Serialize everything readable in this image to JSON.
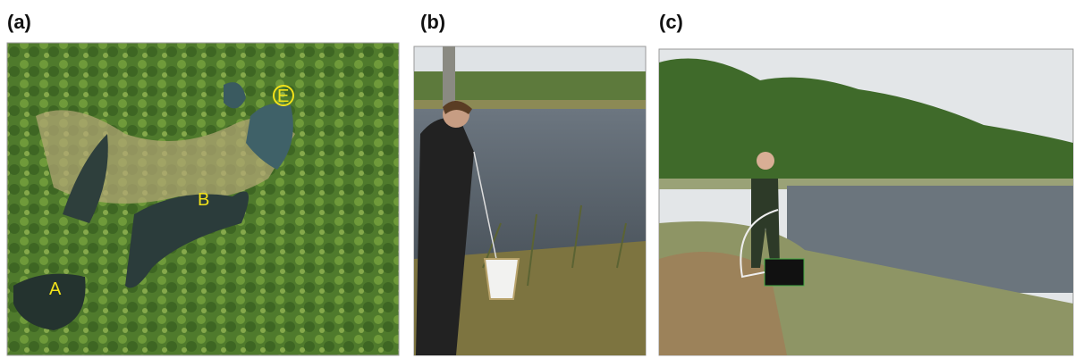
{
  "panels": [
    {
      "label": "(a)",
      "annotations": [
        "A",
        "B",
        "E"
      ]
    },
    {
      "label": "(b)"
    },
    {
      "label": "(c)"
    }
  ]
}
